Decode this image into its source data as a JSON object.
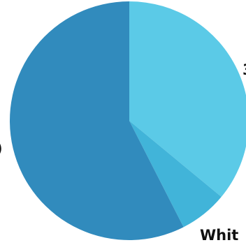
{
  "chart_data": {
    "type": "pie",
    "title": "",
    "start_angle_deg": 0,
    "direction": "clockwise",
    "legend": "none",
    "slices": [
      {
        "label": "3",
        "value": 36,
        "color": "#5bcae7"
      },
      {
        "label": "",
        "value": 6.5,
        "color": "#41b4d9"
      },
      {
        "label": "",
        "value": 57.5,
        "color": "#318bbd"
      }
    ],
    "visible_text": {
      "right_edge_label": "3",
      "bottom_label": "Whit",
      "left_edge_label": ")"
    }
  }
}
